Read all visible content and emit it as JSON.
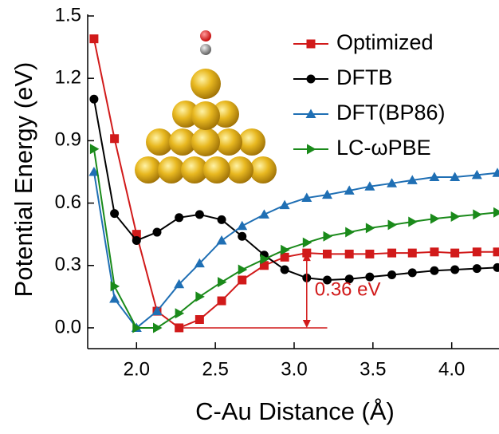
{
  "chart_data": {
    "type": "line",
    "x_label": "C-Au Distance (Å)",
    "y_label": "Potential Energy (eV)",
    "x": [
      1.73,
      1.86,
      2.0,
      2.13,
      2.27,
      2.4,
      2.54,
      2.67,
      2.81,
      2.94,
      3.08,
      3.21,
      3.35,
      3.48,
      3.62,
      3.75,
      3.89,
      4.02,
      4.16,
      4.29
    ],
    "series": [
      {
        "name": "Optimized",
        "color": "#d11a1a",
        "marker": "square",
        "values": [
          1.39,
          0.91,
          0.45,
          0.08,
          0.0,
          0.04,
          0.13,
          0.23,
          0.3,
          0.34,
          0.36,
          0.355,
          0.355,
          0.355,
          0.36,
          0.36,
          0.365,
          0.36,
          0.365,
          0.365
        ]
      },
      {
        "name": "DFTB",
        "color": "#000000",
        "marker": "circle",
        "values": [
          1.1,
          0.55,
          0.42,
          0.46,
          0.53,
          0.545,
          0.52,
          0.44,
          0.35,
          0.28,
          0.24,
          0.23,
          0.235,
          0.245,
          0.255,
          0.265,
          0.275,
          0.28,
          0.285,
          0.29
        ]
      },
      {
        "name": "DFT(BP86)",
        "color": "#1f6fb4",
        "marker": "triangle-up",
        "values": [
          0.75,
          0.14,
          0.0,
          0.08,
          0.21,
          0.31,
          0.42,
          0.49,
          0.545,
          0.59,
          0.625,
          0.64,
          0.66,
          0.68,
          0.695,
          0.71,
          0.725,
          0.725,
          0.735,
          0.745
        ]
      },
      {
        "name": "LC-ωPBE",
        "color": "#1a8a1a",
        "marker": "triangle-right",
        "values": [
          0.86,
          0.2,
          0.0,
          0.0,
          0.07,
          0.15,
          0.22,
          0.28,
          0.33,
          0.375,
          0.41,
          0.44,
          0.46,
          0.48,
          0.495,
          0.51,
          0.525,
          0.535,
          0.545,
          0.555
        ]
      }
    ],
    "annotation": "0.36 eV",
    "xlim": [
      1.69,
      4.3
    ],
    "ylim": [
      -0.1,
      1.5
    ],
    "xticks": [
      {
        "value": 2,
        "label": "2.0"
      },
      2.5,
      {
        "value": 3,
        "label": "3.0"
      },
      3.5,
      {
        "value": 4,
        "label": "4.0"
      }
    ],
    "yticks": [
      {
        "value": 0,
        "label": "0.0"
      },
      0.3,
      0.6,
      0.9,
      1.2,
      1.5
    ],
    "legend": "upper-right"
  }
}
